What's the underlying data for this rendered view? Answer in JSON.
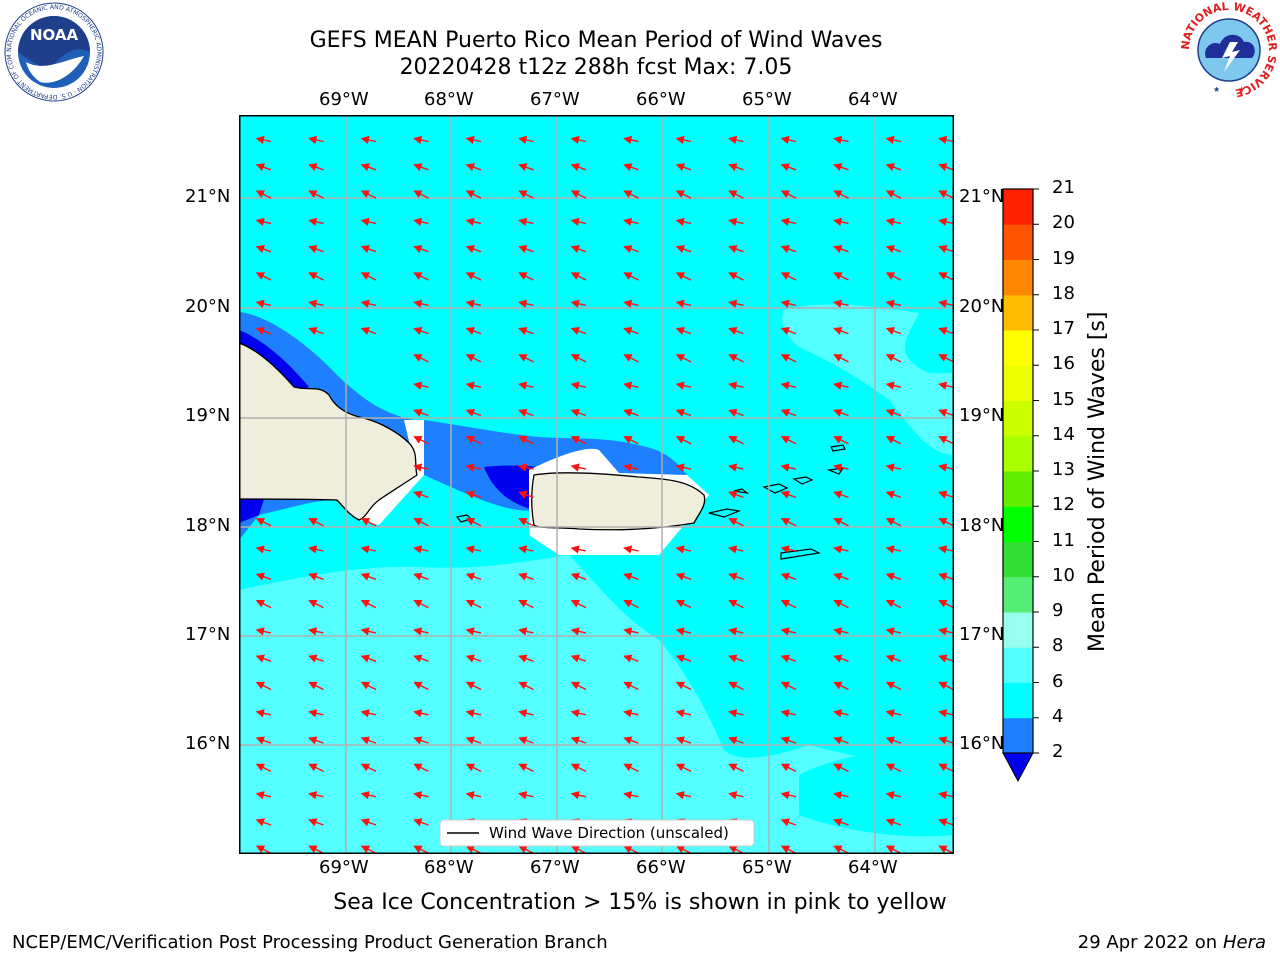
{
  "title_line1": "GEFS MEAN Puerto Rico Mean Period of Wind Waves",
  "title_line2": "20220428 t12z 288h fcst   Max: 7.05",
  "lon_labels": [
    "69°W",
    "68°W",
    "67°W",
    "66°W",
    "65°W",
    "64°W"
  ],
  "lat_labels": [
    "21°N",
    "20°N",
    "19°N",
    "18°N",
    "17°N",
    "16°N"
  ],
  "legend_label": "Wind Wave Direction (unscaled)",
  "colorbar": {
    "title": "Mean Period of Wind Waves [s]",
    "ticks": [
      "2",
      "4",
      "6",
      "8",
      "9",
      "10",
      "11",
      "12",
      "13",
      "14",
      "15",
      "16",
      "17",
      "18",
      "19",
      "20",
      "21"
    ],
    "colors": [
      "#0000ee",
      "#1e80ff",
      "#00ffff",
      "#55ffff",
      "#99ffee",
      "#55ee77",
      "#33dd33",
      "#00ff00",
      "#66ee00",
      "#aaff00",
      "#ccff00",
      "#eeff00",
      "#ffff00",
      "#ffbb00",
      "#ff8800",
      "#ff5500",
      "#ff2200",
      "#ff0000"
    ],
    "under_color": "#0000ee"
  },
  "sea_ice_note": "Sea Ice Concentration > 15% is shown in pink to yellow",
  "footer_left": "NCEP/EMC/Verification Post Processing Product Generation Branch",
  "footer_date": "29 Apr 2022 on ",
  "footer_host": "Hera",
  "logos": {
    "noaa": "NOAA",
    "noaa_ring": "NATIONAL OCEANIC AND ATMOSPHERIC ADMINISTRATION · U.S. DEPARTMENT OF COMMERCE",
    "nws_ring": "NATIONAL WEATHER SERVICE"
  },
  "arrow_color": "#ff1111",
  "land_color": "#efeedd"
}
